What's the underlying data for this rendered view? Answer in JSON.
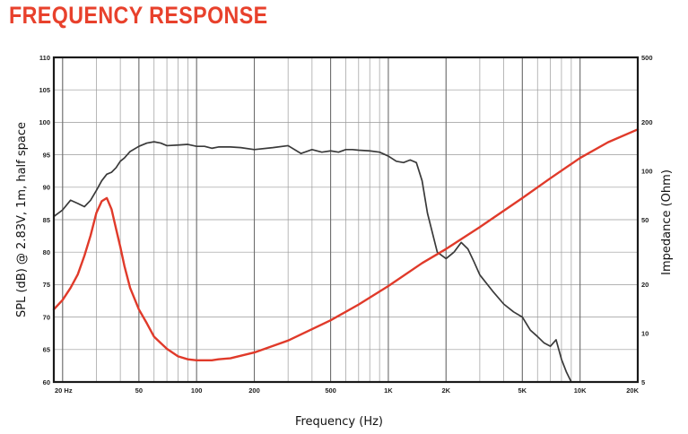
{
  "title": "FREQUENCY RESPONSE",
  "colors": {
    "title": "#e8412c",
    "spl": "#3a3a3a",
    "impedance": "#e03a2a",
    "grid": "#9a9a9a",
    "frame": "#1a1a1a"
  },
  "chart_data": {
    "type": "line",
    "title": "FREQUENCY RESPONSE",
    "xlabel": "Frequency (Hz)",
    "ylabel": "SPL (dB) @ 2.83V, 1m, half space",
    "y2label": "Impedance (Ohm)",
    "x_scale": "log",
    "xlim": [
      18,
      20000
    ],
    "ylim": [
      60,
      110
    ],
    "y2lim": [
      5,
      500
    ],
    "y2_scale": "log",
    "grid": true,
    "x_ticks": [
      {
        "value": 20,
        "label": "20 Hz"
      },
      {
        "value": 50,
        "label": "50"
      },
      {
        "value": 100,
        "label": "100"
      },
      {
        "value": 200,
        "label": "200"
      },
      {
        "value": 500,
        "label": "500"
      },
      {
        "value": 1000,
        "label": "1K"
      },
      {
        "value": 2000,
        "label": "2K"
      },
      {
        "value": 5000,
        "label": "5K"
      },
      {
        "value": 10000,
        "label": "10K"
      },
      {
        "value": 20000,
        "label": "20K"
      }
    ],
    "y_ticks": [
      {
        "value": 60,
        "label": "60"
      },
      {
        "value": 65,
        "label": "65"
      },
      {
        "value": 70,
        "label": "70"
      },
      {
        "value": 75,
        "label": "75"
      },
      {
        "value": 80,
        "label": "80"
      },
      {
        "value": 85,
        "label": "85"
      },
      {
        "value": 90,
        "label": "90"
      },
      {
        "value": 95,
        "label": "95"
      },
      {
        "value": 100,
        "label": "100"
      },
      {
        "value": 105,
        "label": "105"
      },
      {
        "value": 110,
        "label": "110"
      }
    ],
    "y2_ticks": [
      {
        "value": 5,
        "label": "5"
      },
      {
        "value": 10,
        "label": "10"
      },
      {
        "value": 20,
        "label": "20"
      },
      {
        "value": 50,
        "label": "50"
      },
      {
        "value": 100,
        "label": "100"
      },
      {
        "value": 200,
        "label": "200"
      },
      {
        "value": 500,
        "label": "500"
      }
    ],
    "series": [
      {
        "axis": "left",
        "x": [
          18,
          20,
          22,
          24,
          26,
          28,
          30,
          32,
          34,
          36,
          38,
          40,
          42,
          45,
          50,
          55,
          60,
          65,
          70,
          80,
          90,
          100,
          110,
          120,
          130,
          150,
          170,
          200,
          250,
          300,
          350,
          400,
          450,
          500,
          550,
          600,
          650,
          700,
          800,
          900,
          1000,
          1100,
          1200,
          1300,
          1400,
          1500,
          1600,
          1800,
          2000,
          2200,
          2400,
          2600,
          2800,
          3000,
          3500,
          4000,
          4500,
          5000,
          5500,
          6000,
          6500,
          7000,
          7500,
          8000,
          8500,
          9000
        ],
        "y": [
          85.5,
          86.5,
          88,
          87.5,
          87,
          88,
          89.5,
          91,
          92,
          92.3,
          93,
          94,
          94.5,
          95.5,
          96.3,
          96.8,
          97,
          96.8,
          96.4,
          96.5,
          96.6,
          96.3,
          96.3,
          96,
          96.2,
          96.2,
          96.1,
          95.8,
          96.1,
          96.4,
          95.2,
          95.8,
          95.4,
          95.6,
          95.4,
          95.8,
          95.8,
          95.7,
          95.6,
          95.4,
          94.8,
          94,
          93.8,
          94.2,
          93.8,
          91,
          86,
          80,
          79,
          80,
          81.5,
          80.5,
          78.5,
          76.5,
          74,
          72,
          70.8,
          70,
          68,
          67,
          66,
          65.5,
          66.5,
          63.5,
          61.5,
          60
        ]
      },
      {
        "axis": "right",
        "x": [
          18,
          20,
          22,
          24,
          26,
          28,
          30,
          32,
          34,
          36,
          38,
          40,
          42,
          45,
          50,
          55,
          60,
          70,
          80,
          90,
          100,
          110,
          120,
          130,
          150,
          200,
          300,
          500,
          700,
          1000,
          1500,
          2000,
          3000,
          5000,
          7000,
          10000,
          14000,
          20000
        ],
        "y": [
          14,
          16,
          19,
          23,
          30,
          40,
          55,
          65,
          68,
          58,
          44,
          34,
          26,
          19,
          14,
          11.5,
          9.5,
          8,
          7.2,
          6.9,
          6.8,
          6.8,
          6.8,
          6.9,
          7,
          7.6,
          9,
          12,
          15,
          19.5,
          27,
          33,
          45,
          68,
          90,
          120,
          150,
          180
        ]
      }
    ]
  }
}
